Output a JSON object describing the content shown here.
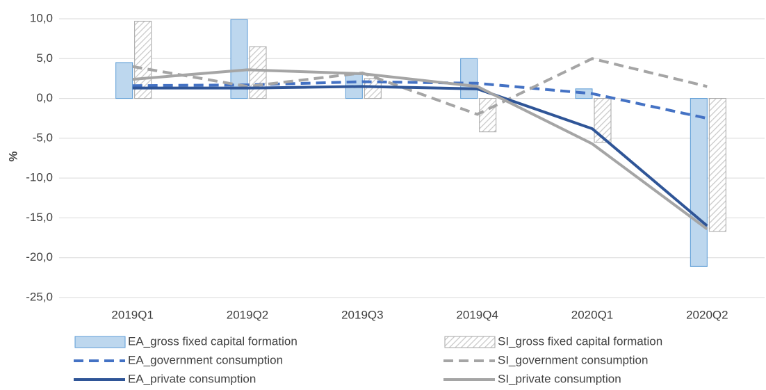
{
  "chart_data": {
    "type": "combo",
    "y_label": "%",
    "categories": [
      "2019Q1",
      "2019Q2",
      "2019Q3",
      "2019Q4",
      "2020Q1",
      "2020Q2"
    ],
    "series": [
      {
        "name": "EA_gross fixed capital formation",
        "style": "bar",
        "color": "#bdd7ee",
        "stroke": "#5b9bd5",
        "hatched": false,
        "values": [
          4.5,
          9.9,
          3.0,
          5.0,
          1.2,
          -21.1
        ]
      },
      {
        "name": "SI_gross fixed capital formation",
        "style": "bar",
        "color": "#ffffff",
        "stroke": "#a5a5a5",
        "hatched": true,
        "values": [
          9.7,
          6.5,
          2.5,
          -4.2,
          -5.5,
          -16.7
        ]
      },
      {
        "name": "EA_government consumption",
        "style": "line",
        "color": "#4472c4",
        "dashed": true,
        "values": [
          1.6,
          1.7,
          2.1,
          1.9,
          0.6,
          -2.5
        ]
      },
      {
        "name": "SI_government consumption",
        "style": "line",
        "color": "#a5a5a5",
        "dashed": true,
        "values": [
          4.0,
          1.5,
          3.2,
          -2.0,
          5.0,
          1.5
        ]
      },
      {
        "name": "EA_private consumption",
        "style": "line",
        "color": "#2f5597",
        "dashed": false,
        "values": [
          1.3,
          1.3,
          1.5,
          1.2,
          -3.8,
          -16.0
        ]
      },
      {
        "name": "SI_private consumption",
        "style": "line",
        "color": "#a5a5a5",
        "dashed": false,
        "values": [
          2.4,
          3.6,
          3.1,
          1.5,
          -5.7,
          -16.4
        ]
      }
    ],
    "ylim": [
      -25,
      10
    ],
    "yticks": [
      {
        "value": -25,
        "label": "-25,0"
      },
      {
        "value": -20,
        "label": "-20,0"
      },
      {
        "value": -15,
        "label": "-15,0"
      },
      {
        "value": -10,
        "label": "-10,0"
      },
      {
        "value": -5,
        "label": "-5,0"
      },
      {
        "value": 0,
        "label": "0,0"
      },
      {
        "value": 5,
        "label": "5,0"
      },
      {
        "value": 10,
        "label": "10,0"
      }
    ],
    "grid": true
  }
}
